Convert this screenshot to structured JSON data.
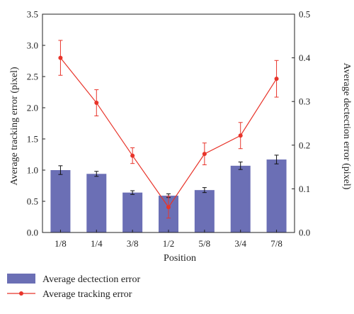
{
  "chart_data": {
    "type": "bar+line",
    "x_label": "Position",
    "categories": [
      "1/8",
      "1/4",
      "3/8",
      "1/2",
      "5/8",
      "3/4",
      "7/8"
    ],
    "left_axis": {
      "label": "Average tracking error (pixel)",
      "range": [
        0.0,
        3.5
      ],
      "ticks": [
        "0.0",
        "0.5",
        "1.0",
        "1.5",
        "2.0",
        "2.5",
        "3.0",
        "3.5"
      ]
    },
    "right_axis": {
      "label": "Average dectection error (pixel)",
      "range": [
        0.0,
        0.5
      ],
      "ticks": [
        "0.0",
        "0.1",
        "0.2",
        "0.3",
        "0.4",
        "0.5"
      ]
    },
    "series": [
      {
        "name": "Average dectection error",
        "type": "bar",
        "axis": "left",
        "color": "#6b6fb5",
        "values": [
          1.0,
          0.94,
          0.64,
          0.59,
          0.68,
          1.07,
          1.17
        ],
        "errors": [
          0.07,
          0.04,
          0.03,
          0.03,
          0.04,
          0.06,
          0.07
        ]
      },
      {
        "name": "Average tracking error",
        "type": "line",
        "axis": "right",
        "color": "#e8342a",
        "values": [
          0.4,
          0.297,
          0.176,
          0.058,
          0.18,
          0.222,
          0.352
        ],
        "errors": [
          0.04,
          0.03,
          0.018,
          0.025,
          0.025,
          0.03,
          0.042
        ]
      }
    ],
    "legend_position": "bottom-left",
    "grid": false
  }
}
